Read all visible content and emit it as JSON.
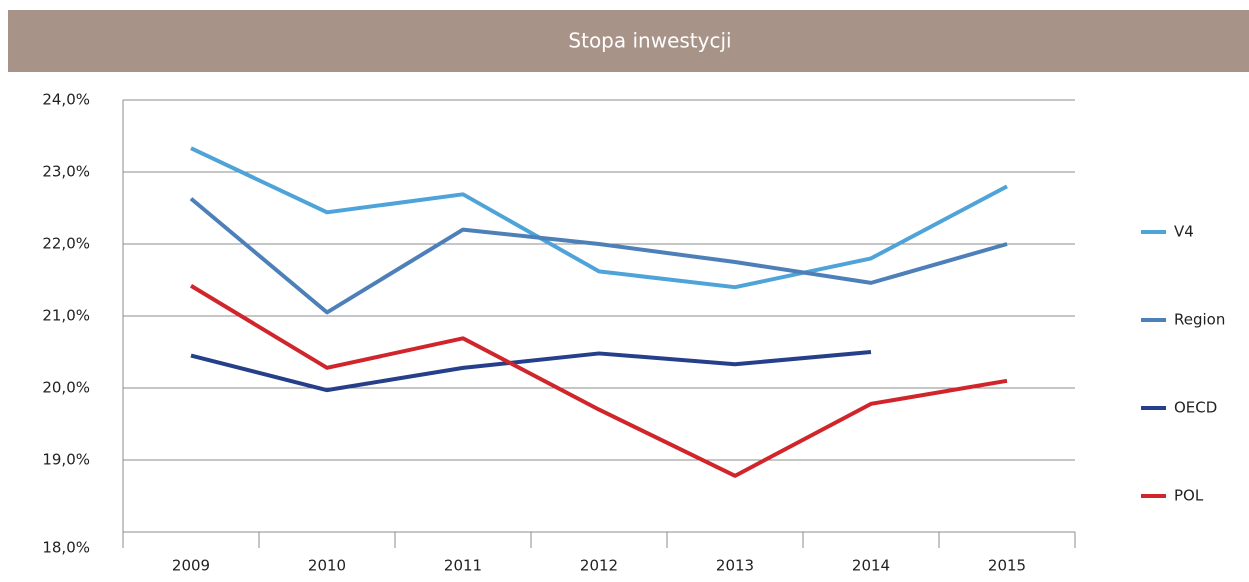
{
  "chart_data": {
    "type": "line",
    "title": "Stopa inwestycji",
    "categories": [
      "2009",
      "2010",
      "2011",
      "2012",
      "2013",
      "2014",
      "2015"
    ],
    "series": [
      {
        "name": "V4",
        "color": "#4ea3d8",
        "values": [
          23.33,
          22.44,
          22.69,
          21.62,
          21.4,
          21.8,
          22.8
        ]
      },
      {
        "name": "Region",
        "color": "#4d7fb8",
        "values": [
          22.63,
          21.05,
          22.2,
          22.0,
          21.75,
          21.46,
          22.0
        ]
      },
      {
        "name": "OECD",
        "color": "#253f8a",
        "values": [
          20.45,
          19.97,
          20.28,
          20.48,
          20.33,
          20.5,
          null
        ]
      },
      {
        "name": "POL",
        "color": "#d0252b",
        "values": [
          21.42,
          20.28,
          20.69,
          19.7,
          18.78,
          19.78,
          20.1
        ]
      }
    ],
    "ylim": [
      18,
      24
    ],
    "yticks": [
      {
        "value": 18,
        "label": "18,0%"
      },
      {
        "value": 19,
        "label": "19,0%"
      },
      {
        "value": 20,
        "label": "20,0%"
      },
      {
        "value": 21,
        "label": "21,0%"
      },
      {
        "value": 22,
        "label": "22,0%"
      },
      {
        "value": 23,
        "label": "23,0%"
      },
      {
        "value": 24,
        "label": "24,0%"
      }
    ],
    "grid": true,
    "legend": "right"
  }
}
